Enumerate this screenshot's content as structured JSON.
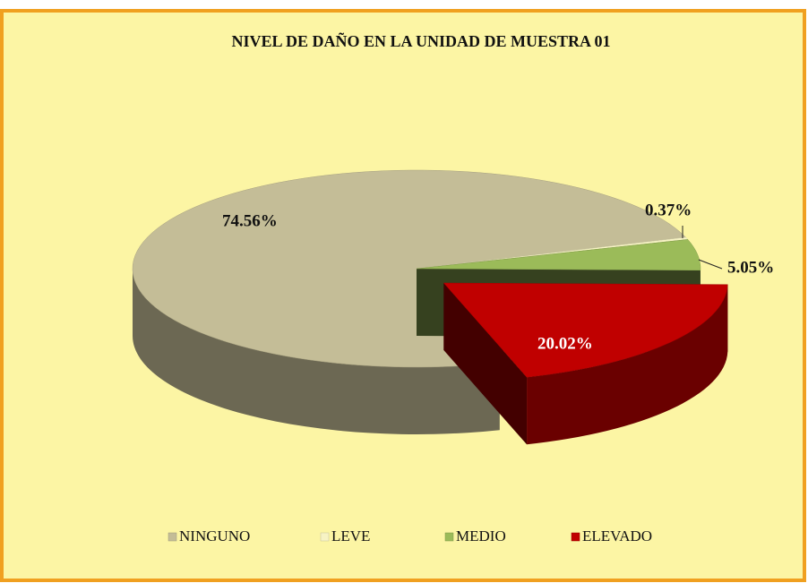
{
  "chart_data": {
    "type": "pie3d",
    "title": "NIVEL DE DAÑO EN LA UNIDAD DE MUESTRA 01",
    "categories": [
      "NINGUNO",
      "LEVE",
      "MEDIO",
      "ELEVADO"
    ],
    "values": [
      74.56,
      0.37,
      5.05,
      20.02
    ],
    "value_labels": [
      "74.56%",
      "0.37%",
      "5.05%",
      "20.02%"
    ],
    "colors": [
      "#c4bd97",
      "#f7f3c4",
      "#9bbb59",
      "#c00000"
    ],
    "explode": [
      false,
      false,
      false,
      true
    ],
    "legend": "bottom"
  }
}
